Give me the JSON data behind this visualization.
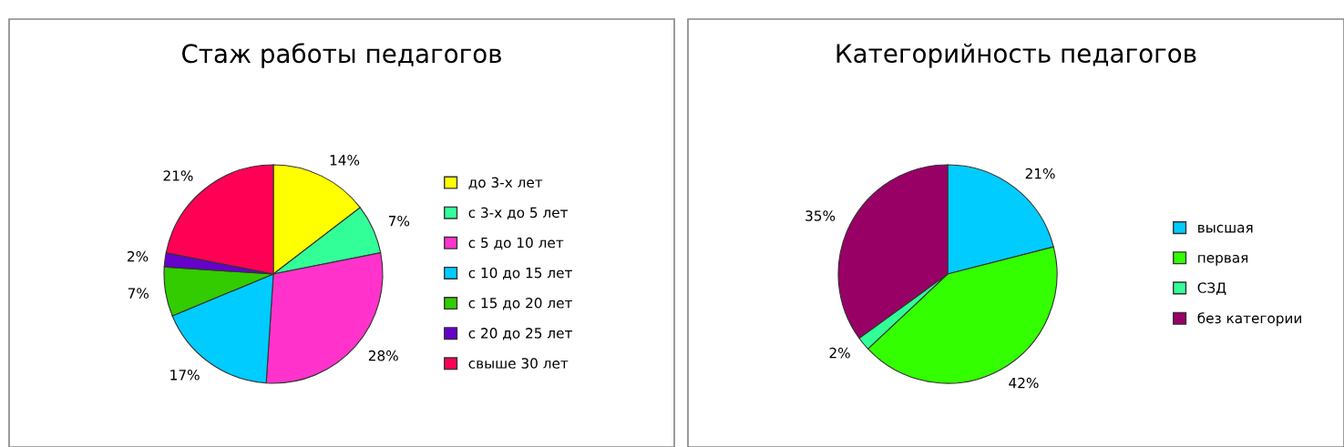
{
  "chart_data": [
    {
      "type": "pie",
      "title": "Стаж работы педагогов",
      "categories": [
        "до 3-х лет",
        "с 3-х до 5 лет",
        "с 5 до 10 лет",
        "с 10 до 15 лет",
        "с 15 до 20 лет",
        "с 20 до 25 лет",
        "свыше 30 лет"
      ],
      "values": [
        14,
        7,
        28,
        17,
        7,
        2,
        21
      ],
      "value_labels": [
        "14%",
        "7%",
        "28%",
        "17%",
        "7%",
        "2%",
        "21%"
      ],
      "colors": [
        "#ffff00",
        "#33ff99",
        "#ff33cc",
        "#00ccff",
        "#33cc00",
        "#6600cc",
        "#ff0055"
      ],
      "legend": "right"
    },
    {
      "type": "pie",
      "title": "Категорийность педагогов",
      "categories": [
        "высшая",
        "первая",
        "СЗД",
        "без категории"
      ],
      "values": [
        21,
        42,
        2,
        35
      ],
      "value_labels": [
        "21%",
        "42%",
        "2%",
        "35%"
      ],
      "colors": [
        "#00ccff",
        "#33ff00",
        "#33ff99",
        "#990066"
      ],
      "legend": "right"
    }
  ]
}
